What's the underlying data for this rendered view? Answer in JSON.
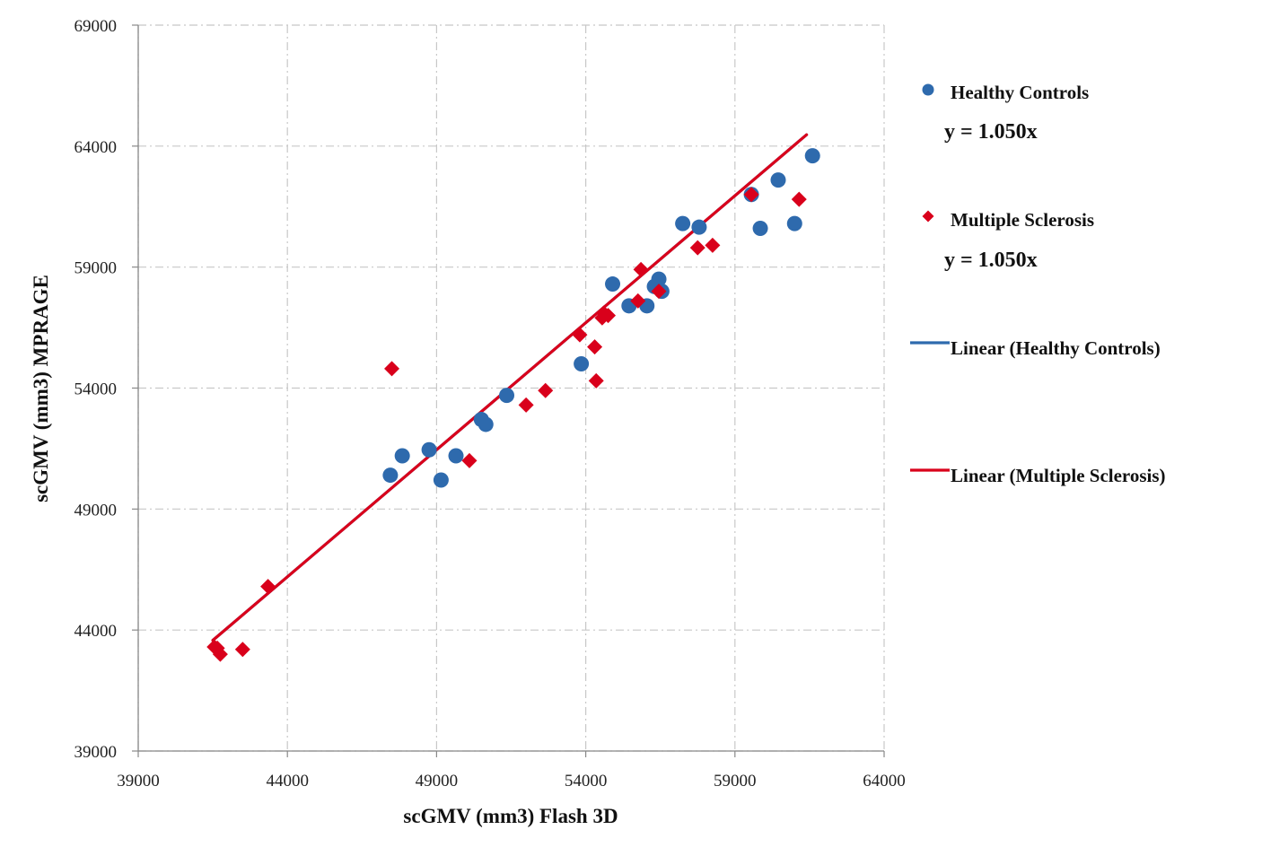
{
  "chart_data": {
    "type": "scatter",
    "xlabel": "scGMV (mm3)  Flash 3D",
    "ylabel": "scGMV (mm3) MPRAGE",
    "xlim": [
      39000,
      64000
    ],
    "ylim": [
      39000,
      69000
    ],
    "xticks": [
      "39000",
      "44000",
      "49000",
      "54000",
      "59000",
      "64000"
    ],
    "yticks": [
      "39000",
      "44000",
      "49000",
      "54000",
      "59000",
      "64000",
      "69000"
    ],
    "grid": true,
    "legend_position": "right",
    "series": [
      {
        "name": "Healthy Controls",
        "marker": "circle",
        "color": "#2e6aad",
        "points": [
          [
            47450,
            50400
          ],
          [
            47850,
            51200
          ],
          [
            48750,
            51450
          ],
          [
            49150,
            50200
          ],
          [
            49650,
            51200
          ],
          [
            50500,
            52700
          ],
          [
            50650,
            52500
          ],
          [
            51350,
            53700
          ],
          [
            53850,
            55000
          ],
          [
            54900,
            58300
          ],
          [
            55450,
            57400
          ],
          [
            56050,
            57400
          ],
          [
            56450,
            58500
          ],
          [
            56550,
            58000
          ],
          [
            56300,
            58200
          ],
          [
            57250,
            60800
          ],
          [
            57800,
            60650
          ],
          [
            59550,
            62000
          ],
          [
            59850,
            60600
          ],
          [
            60450,
            62600
          ],
          [
            61000,
            60800
          ],
          [
            61600,
            63600
          ]
        ]
      },
      {
        "name": "Multiple Sclerosis",
        "marker": "diamond",
        "color": "#d9001b",
        "points": [
          [
            41550,
            43300
          ],
          [
            41650,
            43250
          ],
          [
            41750,
            43000
          ],
          [
            42500,
            43200
          ],
          [
            43350,
            45800
          ],
          [
            47500,
            54800
          ],
          [
            50100,
            51000
          ],
          [
            52000,
            53300
          ],
          [
            52650,
            53900
          ],
          [
            53800,
            56200
          ],
          [
            54300,
            55700
          ],
          [
            54350,
            54300
          ],
          [
            54550,
            56900
          ],
          [
            54600,
            57100
          ],
          [
            54750,
            57000
          ],
          [
            55750,
            57600
          ],
          [
            55850,
            58900
          ],
          [
            56450,
            58000
          ],
          [
            57750,
            59800
          ],
          [
            58250,
            59900
          ],
          [
            59550,
            62000
          ],
          [
            61150,
            61800
          ]
        ]
      }
    ],
    "trendlines": [
      {
        "name": "Linear (Healthy Controls)",
        "color": "#2e6aad",
        "x_range": [
          41500,
          61400
        ]
      },
      {
        "name": "Linear (Multiple Sclerosis)",
        "color": "#d9001b",
        "x_range": [
          41500,
          61400
        ]
      }
    ],
    "legend": [
      {
        "label": "Healthy Controls",
        "equation": "y = 1.050x",
        "marker": "circle",
        "color": "#2e6aad"
      },
      {
        "label": "Multiple Sclerosis",
        "equation": "y = 1.050x",
        "marker": "diamond",
        "color": "#d9001b"
      },
      {
        "label": "Linear (Healthy Controls)",
        "marker": "line",
        "color": "#2e6aad"
      },
      {
        "label": "Linear (Multiple Sclerosis)",
        "marker": "line",
        "color": "#d9001b"
      }
    ]
  }
}
